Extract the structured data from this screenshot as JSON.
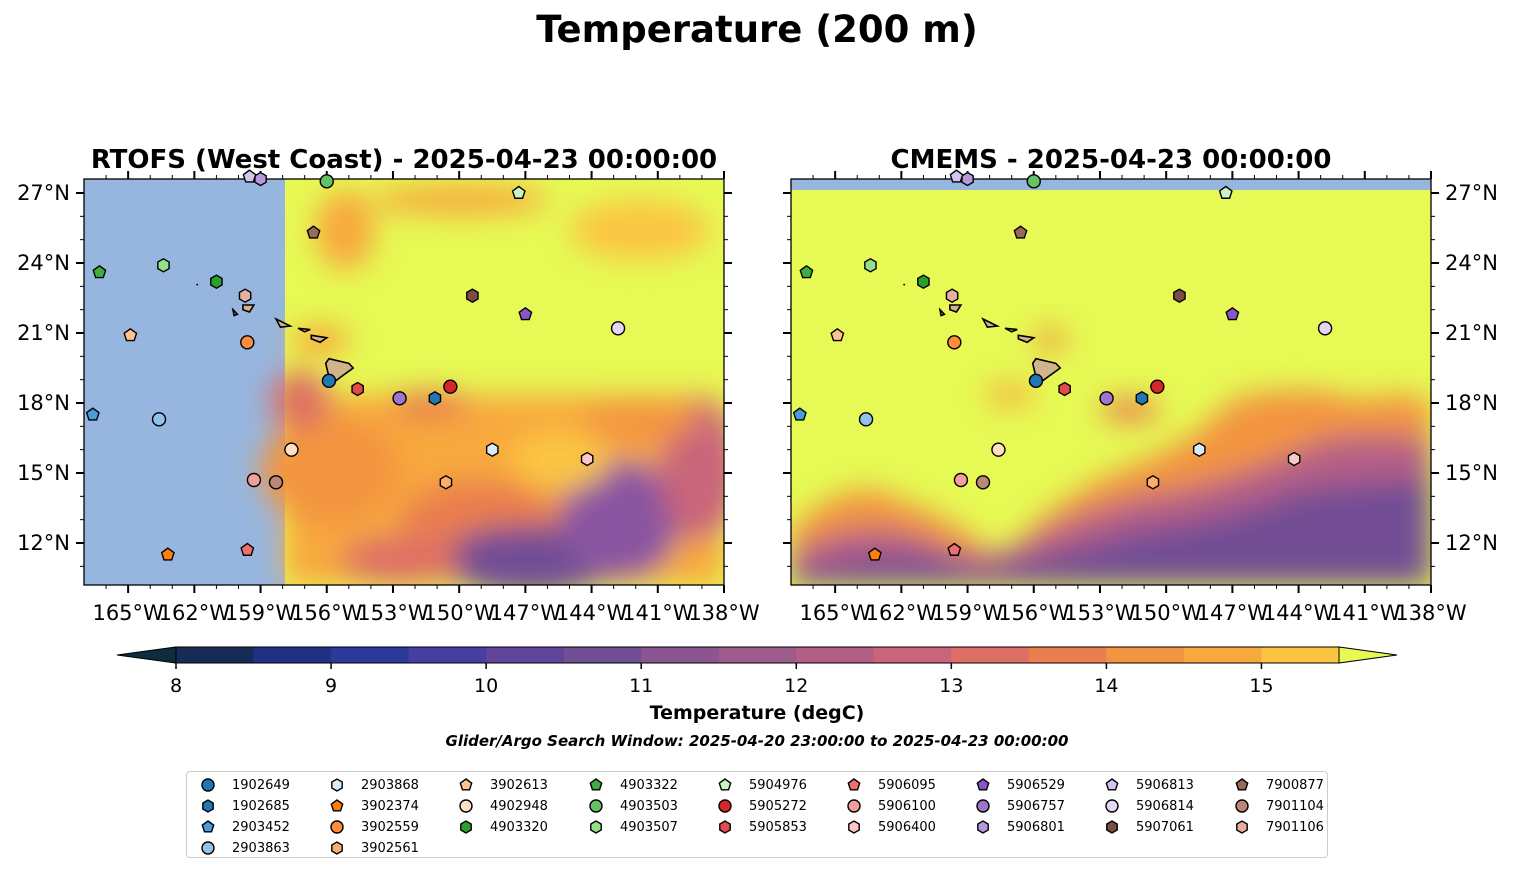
{
  "figure": {
    "suptitle": "Temperature (200 m)",
    "search_window": "Glider/Argo Search Window: 2025-04-20 23:00:00 to 2025-04-23 00:00:00"
  },
  "chart_data": [
    {
      "type": "heatmap",
      "title": "RTOFS (West Coast) - 2025-04-23 00:00:00",
      "lon_range": [
        -167,
        -138
      ],
      "lat_range": [
        10.2,
        27.6
      ],
      "xticks": [
        "165°W",
        "162°W",
        "159°W",
        "156°W",
        "153°W",
        "150°W",
        "147°W",
        "144°W",
        "141°W",
        "138°W"
      ],
      "yticks": [
        "27°N",
        "24°N",
        "21°N",
        "18°N",
        "15°N",
        "12°N"
      ],
      "no_data_region": {
        "lon": [
          -167,
          -157.9
        ],
        "note": "model domain begins near 157.9°W"
      },
      "field_description": "Warm (>15 degC) north of ~17°N; cooler 10–13 degC patches south of 17°N especially east of 150°W"
    },
    {
      "type": "heatmap",
      "title": "CMEMS - 2025-04-23 00:00:00",
      "lon_range": [
        -167,
        -138
      ],
      "lat_range": [
        10.2,
        27.6
      ],
      "xticks": [
        "165°W",
        "162°W",
        "159°W",
        "156°W",
        "153°W",
        "150°W",
        "147°W",
        "144°W",
        "141°W",
        "138°W"
      ],
      "yticks": [
        "27°N",
        "24°N",
        "21°N",
        "18°N",
        "15°N",
        "12°N"
      ],
      "no_data_region": {
        "lat": [
          27.1,
          27.6
        ]
      },
      "field_description": ">15 degC over most of domain; cold tongue 10–12 degC in south, rising to ~18°N east of 147°W"
    }
  ],
  "colorbar": {
    "label": "Temperature (degC)",
    "min": 7.6,
    "max": 15.9,
    "levels": [
      8,
      8.5,
      9,
      9.5,
      10,
      10.5,
      11,
      11.5,
      12,
      12.5,
      13,
      13.5,
      14,
      14.5,
      15,
      15.5
    ],
    "ticks": [
      "8",
      "9",
      "10",
      "11",
      "12",
      "13",
      "14",
      "15"
    ],
    "colors": [
      "#0d2d3f",
      "#172b56",
      "#1e3182",
      "#2b3a9a",
      "#483e9f",
      "#5e4599",
      "#724e94",
      "#8a5591",
      "#9d5b8c",
      "#b45f86",
      "#c9657a",
      "#de6f64",
      "#ea7e4e",
      "#f39441",
      "#f8a93e",
      "#fbc542",
      "#f4df4b",
      "#e6f954"
    ]
  },
  "legend": {
    "columns": [
      [
        {
          "id": "1902649",
          "marker": "o",
          "color": "#1f77b4"
        },
        {
          "id": "1902685",
          "marker": "h",
          "color": "#1f77b4"
        },
        {
          "id": "2903452",
          "marker": "p",
          "color": "#4a9ed8"
        },
        {
          "id": "2903863",
          "marker": "o",
          "color": "#8fc1ea"
        }
      ],
      [
        {
          "id": "2903868",
          "marker": "h",
          "color": "#d7ecfb"
        },
        {
          "id": "3902374",
          "marker": "p",
          "color": "#ff7f0e"
        },
        {
          "id": "3902559",
          "marker": "o",
          "color": "#fd8d3c"
        },
        {
          "id": "3902561",
          "marker": "h",
          "color": "#fdae6b"
        }
      ],
      [
        {
          "id": "3902613",
          "marker": "p",
          "color": "#fdc38d"
        },
        {
          "id": "4902948",
          "marker": "o",
          "color": "#fee0c2"
        },
        {
          "id": "4903320",
          "marker": "h",
          "color": "#2ca02c"
        }
      ],
      [
        {
          "id": "4903322",
          "marker": "p",
          "color": "#3fae3f"
        },
        {
          "id": "4903503",
          "marker": "o",
          "color": "#63c363"
        },
        {
          "id": "4903507",
          "marker": "h",
          "color": "#98df8a"
        }
      ],
      [
        {
          "id": "5904976",
          "marker": "p",
          "color": "#c7f5bf"
        },
        {
          "id": "5905272",
          "marker": "o",
          "color": "#d62728"
        },
        {
          "id": "5905853",
          "marker": "h",
          "color": "#e34a4b"
        }
      ],
      [
        {
          "id": "5906095",
          "marker": "p",
          "color": "#ef6f6f"
        },
        {
          "id": "5906100",
          "marker": "o",
          "color": "#f29e9b"
        },
        {
          "id": "5906400",
          "marker": "h",
          "color": "#fbc8c7"
        }
      ],
      [
        {
          "id": "5906529",
          "marker": "p",
          "color": "#8a55c4"
        },
        {
          "id": "5906757",
          "marker": "o",
          "color": "#9e74cc"
        },
        {
          "id": "5906801",
          "marker": "h",
          "color": "#b898dc"
        }
      ],
      [
        {
          "id": "5906813",
          "marker": "p",
          "color": "#d6c3ee"
        },
        {
          "id": "5906814",
          "marker": "o",
          "color": "#e5d5f7"
        },
        {
          "id": "5907061",
          "marker": "h",
          "color": "#7a4e41"
        }
      ],
      [
        {
          "id": "7900877",
          "marker": "p",
          "color": "#9a6a58"
        },
        {
          "id": "7901104",
          "marker": "o",
          "color": "#bb8877"
        },
        {
          "id": "7901106",
          "marker": "h",
          "color": "#e5b0a0"
        }
      ]
    ]
  },
  "floats": [
    {
      "id": "1902649",
      "lon": -155.9,
      "lat": 18.95
    },
    {
      "id": "1902685",
      "lon": -151.1,
      "lat": 18.2
    },
    {
      "id": "2903452",
      "lon": -166.6,
      "lat": 17.5
    },
    {
      "id": "2903863",
      "lon": -163.6,
      "lat": 17.3
    },
    {
      "id": "2903868",
      "lon": -148.5,
      "lat": 16.0
    },
    {
      "id": "3902374",
      "lon": -163.2,
      "lat": 11.5
    },
    {
      "id": "3902559",
      "lon": -159.6,
      "lat": 20.6
    },
    {
      "id": "3902561",
      "lon": -150.6,
      "lat": 14.6
    },
    {
      "id": "3902613",
      "lon": -164.9,
      "lat": 20.9
    },
    {
      "id": "4902948",
      "lon": -157.6,
      "lat": 16.0
    },
    {
      "id": "4903320",
      "lon": -161.0,
      "lat": 23.2
    },
    {
      "id": "4903322",
      "lon": -166.3,
      "lat": 23.6
    },
    {
      "id": "4903503",
      "lon": -156.0,
      "lat": 27.5
    },
    {
      "id": "4903507",
      "lon": -163.4,
      "lat": 23.9
    },
    {
      "id": "5904976",
      "lon": -147.3,
      "lat": 27.0
    },
    {
      "id": "5905272",
      "lon": -150.4,
      "lat": 18.7
    },
    {
      "id": "5905853",
      "lon": -154.6,
      "lat": 18.6
    },
    {
      "id": "5906095",
      "lon": -159.6,
      "lat": 11.7
    },
    {
      "id": "5906100",
      "lon": -159.3,
      "lat": 14.7
    },
    {
      "id": "5906400",
      "lon": -144.2,
      "lat": 15.6
    },
    {
      "id": "5906529",
      "lon": -147.0,
      "lat": 21.8
    },
    {
      "id": "5906757",
      "lon": -152.7,
      "lat": 18.2
    },
    {
      "id": "5906801",
      "lon": -159.0,
      "lat": 27.6
    },
    {
      "id": "5906813",
      "lon": -159.5,
      "lat": 27.7
    },
    {
      "id": "5906814",
      "lon": -142.8,
      "lat": 21.2
    },
    {
      "id": "5907061",
      "lon": -149.4,
      "lat": 22.6
    },
    {
      "id": "7900877",
      "lon": -156.6,
      "lat": 25.3
    },
    {
      "id": "7901104",
      "lon": -158.3,
      "lat": 14.6
    },
    {
      "id": "7901106",
      "lon": -159.7,
      "lat": 22.6
    }
  ]
}
